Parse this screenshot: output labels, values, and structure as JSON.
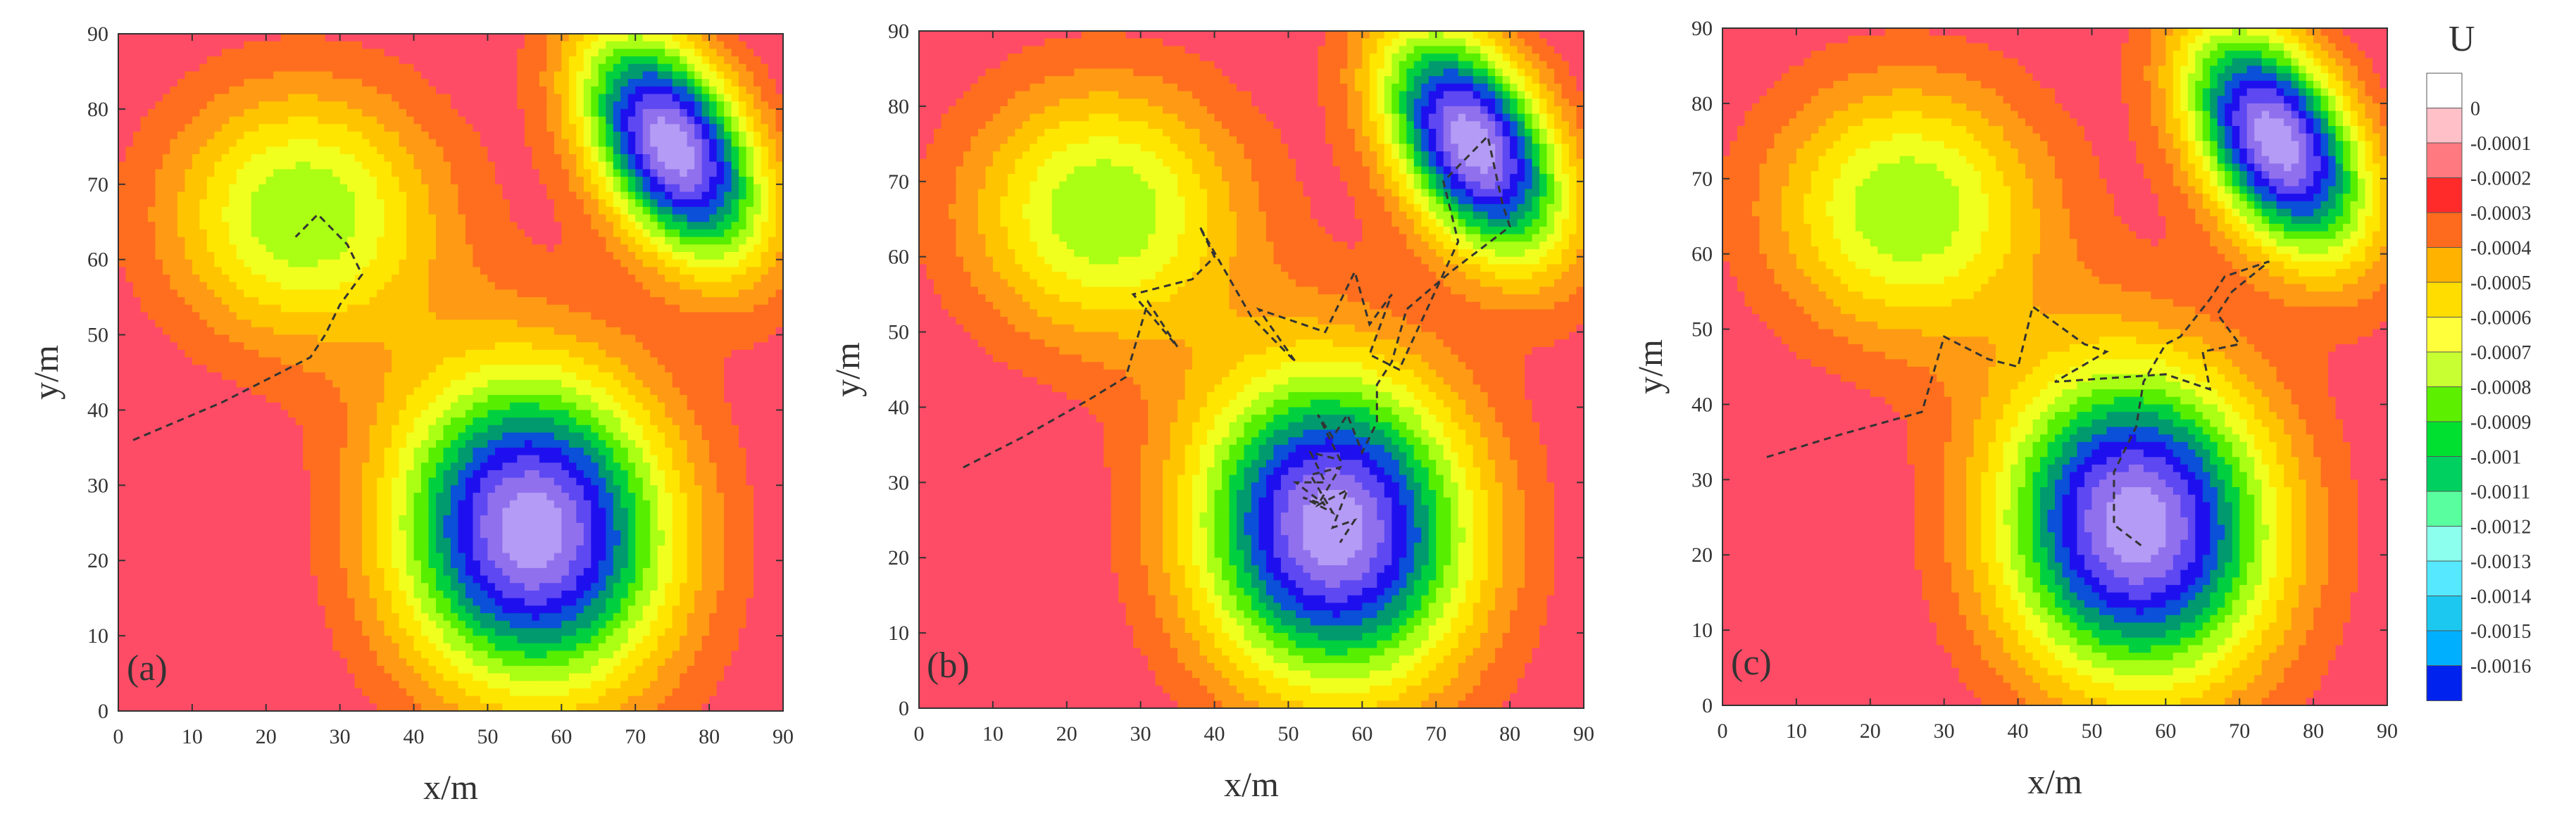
{
  "chart_data": [
    {
      "type": "contour",
      "panel_label": "(a)",
      "xlabel": "x/m",
      "ylabel": "y/m",
      "xlim": [
        0,
        90
      ],
      "ylim": [
        0,
        90
      ],
      "xticks": [
        "0",
        "10",
        "20",
        "30",
        "40",
        "50",
        "60",
        "70",
        "80",
        "90"
      ],
      "yticks": [
        "0",
        "10",
        "20",
        "30",
        "40",
        "50",
        "60",
        "70",
        "80",
        "90"
      ],
      "path": [
        [
          2,
          36
        ],
        [
          14,
          41
        ],
        [
          26,
          47
        ],
        [
          28,
          50
        ],
        [
          30,
          54
        ],
        [
          33,
          58
        ],
        [
          31,
          62
        ],
        [
          27,
          66
        ],
        [
          24,
          63
        ]
      ]
    },
    {
      "type": "contour",
      "panel_label": "(b)",
      "xlabel": "x/m",
      "ylabel": "y/m",
      "xlim": [
        0,
        90
      ],
      "ylim": [
        0,
        90
      ],
      "xticks": [
        "0",
        "10",
        "20",
        "30",
        "40",
        "50",
        "60",
        "70",
        "80",
        "90"
      ],
      "yticks": [
        "0",
        "10",
        "20",
        "30",
        "40",
        "50",
        "60",
        "70",
        "80",
        "90"
      ],
      "path": [
        [
          6,
          32
        ],
        [
          14,
          36
        ],
        [
          23,
          41
        ],
        [
          28,
          44
        ],
        [
          31,
          54
        ],
        [
          35,
          48
        ],
        [
          29,
          55
        ],
        [
          37,
          57
        ],
        [
          40,
          60
        ],
        [
          38,
          64
        ],
        [
          45,
          52
        ],
        [
          51,
          46
        ],
        [
          46,
          53
        ],
        [
          55,
          50
        ],
        [
          59,
          58
        ],
        [
          61,
          51
        ],
        [
          64,
          55
        ],
        [
          61,
          47
        ],
        [
          65,
          45
        ],
        [
          73,
          62
        ],
        [
          71,
          70
        ],
        [
          77,
          76
        ],
        [
          79,
          67
        ],
        [
          80,
          64
        ],
        [
          72,
          58
        ],
        [
          66,
          53
        ],
        [
          64,
          46
        ],
        [
          62,
          43
        ],
        [
          62,
          38
        ],
        [
          60,
          34
        ],
        [
          58,
          39
        ],
        [
          56,
          36
        ],
        [
          54,
          39
        ],
        [
          57,
          33
        ],
        [
          53,
          34
        ],
        [
          55,
          30
        ],
        [
          51,
          30
        ],
        [
          55,
          27
        ],
        [
          52,
          28
        ],
        [
          56,
          26
        ],
        [
          53,
          31
        ],
        [
          57,
          32
        ],
        [
          54,
          27
        ],
        [
          58,
          29
        ],
        [
          56,
          24
        ],
        [
          59,
          25
        ],
        [
          57,
          22
        ]
      ]
    },
    {
      "type": "contour",
      "panel_label": "(c)",
      "xlabel": "x/m",
      "ylabel": "y/m",
      "xlim": [
        0,
        90
      ],
      "ylim": [
        0,
        90
      ],
      "xticks": [
        "0",
        "10",
        "20",
        "30",
        "40",
        "50",
        "60",
        "70",
        "80",
        "90"
      ],
      "yticks": [
        "0",
        "10",
        "20",
        "30",
        "40",
        "50",
        "60",
        "70",
        "80",
        "90"
      ],
      "path": [
        [
          6,
          33
        ],
        [
          16,
          36
        ],
        [
          27,
          39
        ],
        [
          30,
          49
        ],
        [
          36,
          46
        ],
        [
          40,
          45
        ],
        [
          42,
          53
        ],
        [
          49,
          48
        ],
        [
          52,
          47
        ],
        [
          45,
          43
        ],
        [
          60,
          44
        ],
        [
          66,
          42
        ],
        [
          65,
          47
        ],
        [
          70,
          48
        ],
        [
          67,
          52
        ],
        [
          69,
          55
        ],
        [
          74,
          59
        ],
        [
          68,
          57
        ],
        [
          66,
          54
        ],
        [
          62,
          49
        ],
        [
          60,
          48
        ],
        [
          57,
          43
        ],
        [
          56,
          37
        ],
        [
          53,
          31
        ],
        [
          53,
          24
        ],
        [
          57,
          21
        ]
      ]
    }
  ],
  "colorbar": {
    "title": "U",
    "labels": [
      "0",
      "-0.0001",
      "-0.0002",
      "-0.0003",
      "-0.0004",
      "-0.0005",
      "-0.0006",
      "-0.0007",
      "-0.0008",
      "-0.0009",
      "-0.001",
      "-0.0011",
      "-0.0012",
      "-0.0013",
      "-0.0014",
      "-0.0015",
      "-0.0016"
    ],
    "colors": [
      "#ffffff",
      "#ffc0c8",
      "#ff7a80",
      "#ff2a2a",
      "#ff6b1e",
      "#ffb300",
      "#ffdd00",
      "#ffff3c",
      "#c8ff32",
      "#5cf000",
      "#00e030",
      "#00d060",
      "#59ff9e",
      "#8cffee",
      "#55e8ff",
      "#1cc8f0",
      "#00b0ff",
      "#0022ee"
    ],
    "plot_colors": [
      "#ff4c66",
      "#ff6e1e",
      "#ff9a14",
      "#ffc400",
      "#ffe600",
      "#f0ff1e",
      "#aaff14",
      "#57ee00",
      "#00d040",
      "#009a6e",
      "#0a50d8",
      "#1e10ee",
      "#5e48f2",
      "#9170ee",
      "#b49bf5"
    ]
  }
}
